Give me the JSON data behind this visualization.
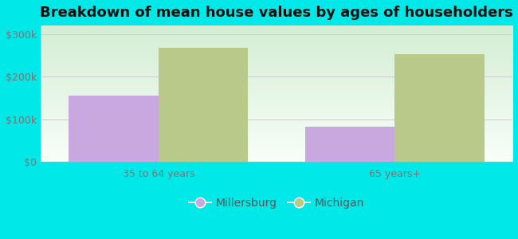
{
  "title": "Breakdown of mean house values by ages of householders",
  "categories": [
    "35 to 64 years",
    "65 years+"
  ],
  "millersburg_values": [
    155000,
    82000
  ],
  "michigan_values": [
    268000,
    253000
  ],
  "millersburg_color": "#c9a8e0",
  "michigan_color": "#b8c98a",
  "background_color": "#00e8e8",
  "plot_bg_top": "#d4edd4",
  "plot_bg_bottom": "#f8fff8",
  "ylim": [
    0,
    320000
  ],
  "yticks": [
    0,
    100000,
    200000,
    300000
  ],
  "ytick_labels": [
    "$0",
    "$100k",
    "$200k",
    "$300k"
  ],
  "legend_labels": [
    "Millersburg",
    "Michigan"
  ],
  "title_fontsize": 13,
  "tick_fontsize": 9,
  "legend_fontsize": 10,
  "bar_width": 0.38
}
